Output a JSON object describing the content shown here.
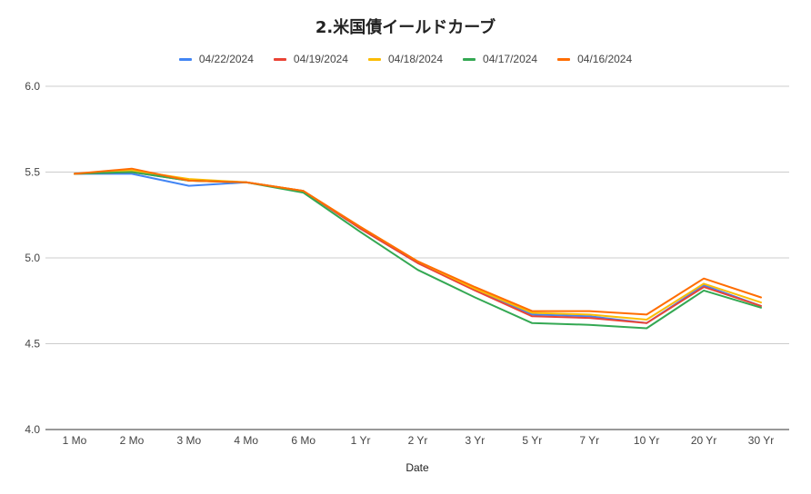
{
  "chart_data": {
    "type": "line",
    "title": "2.米国債イールドカーブ",
    "xlabel": "Date",
    "ylabel": "",
    "categories": [
      "1 Mo",
      "2 Mo",
      "3 Mo",
      "4 Mo",
      "6 Mo",
      "1 Yr",
      "2 Yr",
      "3 Yr",
      "5 Yr",
      "7 Yr",
      "10 Yr",
      "20 Yr",
      "30 Yr"
    ],
    "ylim": [
      4.0,
      6.0
    ],
    "yticks": [
      "4.0",
      "4.5",
      "5.0",
      "5.5",
      "6.0"
    ],
    "grid": true,
    "legend_position": "top",
    "series": [
      {
        "name": "04/22/2024",
        "color": "#4285f4",
        "values": [
          5.49,
          5.49,
          5.42,
          5.44,
          5.39,
          5.17,
          4.97,
          4.82,
          4.67,
          4.66,
          4.62,
          4.84,
          4.72
        ]
      },
      {
        "name": "04/19/2024",
        "color": "#ea4335",
        "values": [
          5.49,
          5.5,
          5.45,
          5.44,
          5.39,
          5.17,
          4.97,
          4.81,
          4.66,
          4.65,
          4.62,
          4.83,
          4.72
        ]
      },
      {
        "name": "04/18/2024",
        "color": "#fbbc04",
        "values": [
          5.49,
          5.51,
          5.46,
          5.44,
          5.39,
          5.18,
          4.98,
          4.82,
          4.68,
          4.67,
          4.64,
          4.85,
          4.74
        ]
      },
      {
        "name": "04/17/2024",
        "color": "#34a853",
        "values": [
          5.49,
          5.5,
          5.45,
          5.44,
          5.38,
          5.15,
          4.93,
          4.77,
          4.62,
          4.61,
          4.59,
          4.81,
          4.71
        ]
      },
      {
        "name": "04/16/2024",
        "color": "#ff6d01",
        "values": [
          5.49,
          5.52,
          5.45,
          5.44,
          5.39,
          5.18,
          4.98,
          4.83,
          4.69,
          4.69,
          4.67,
          4.88,
          4.77
        ]
      }
    ]
  }
}
